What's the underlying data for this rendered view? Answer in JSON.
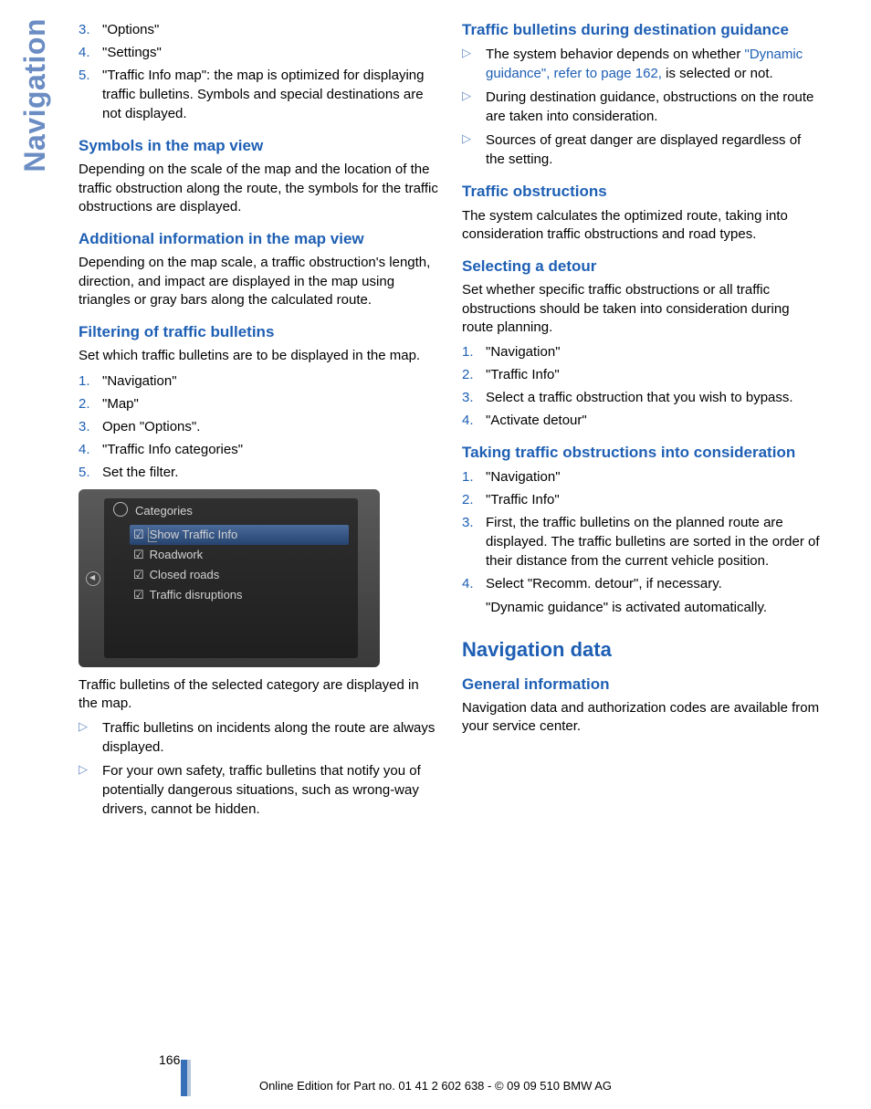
{
  "side_tab": "Navigation",
  "left": {
    "ol1": [
      "\"Options\"",
      "\"Settings\"",
      "\"Traffic Info map\": the map is optimized for displaying traffic bulletins. Symbols and special destinations are not displayed."
    ],
    "ol1_start": 3,
    "h_symbols": "Symbols in the map view",
    "p_symbols": "Depending on the scale of the map and the location of the traffic obstruction along the route, the symbols for the traffic obstructions are displayed.",
    "h_addinfo": "Additional information in the map view",
    "p_addinfo": "Depending on the map scale, a traffic obstruction's length, direction, and impact are displayed in the map using triangles or gray bars along the calculated route.",
    "h_filter": "Filtering of traffic bulletins",
    "p_filter": "Set which traffic bulletins are to be displayed in the map.",
    "ol2": [
      "\"Navigation\"",
      "\"Map\"",
      "Open \"Options\".",
      "\"Traffic Info categories\"",
      "Set the filter."
    ],
    "screenshot": {
      "title": "Categories",
      "items": [
        {
          "label": "Show Traffic Info",
          "selected": true
        },
        {
          "label": "Roadwork",
          "selected": false
        },
        {
          "label": "Closed roads",
          "selected": false
        },
        {
          "label": "Traffic disruptions",
          "selected": false
        }
      ]
    },
    "p_after_shot": "Traffic bulletins of the selected category are displayed in the map.",
    "tri1": [
      "Traffic bulletins on incidents along the route are always displayed.",
      "For your own safety, traffic bulletins that notify you of potentially dangerous situations, such as wrong-way drivers, cannot be hidden."
    ]
  },
  "right": {
    "h_tbdg": "Traffic bulletins during destination guidance",
    "tri2": [
      {
        "pre": "The system behavior depends on whether ",
        "link": "\"Dynamic guidance\", refer to page 162,",
        "post": " is selected or not."
      },
      {
        "pre": "During destination guidance, obstructions on the route are taken into consideration.",
        "link": "",
        "post": ""
      },
      {
        "pre": "Sources of great danger are displayed regardless of the setting.",
        "link": "",
        "post": ""
      }
    ],
    "h_to": "Traffic obstructions",
    "p_to": "The system calculates the optimized route, taking into consideration traffic obstructions and road types.",
    "h_sel": "Selecting a detour",
    "p_sel": "Set whether specific traffic obstructions or all traffic obstructions should be taken into consideration during route planning.",
    "ol3": [
      "\"Navigation\"",
      "\"Traffic Info\"",
      "Select a traffic obstruction that you wish to bypass.",
      "\"Activate detour\""
    ],
    "h_take": "Taking traffic obstructions into consideration",
    "ol4": [
      "\"Navigation\"",
      "\"Traffic Info\"",
      "First, the traffic bulletins on the planned route are displayed. The traffic bulletins are sorted in the order of their distance from the current vehicle position.",
      "Select \"Recomm. detour\", if necessary."
    ],
    "p_dyn": "\"Dynamic guidance\" is activated automatically.",
    "h_navdata": "Navigation data",
    "h_geninfo": "General information",
    "p_geninfo": "Navigation data and authorization codes are available from your service center."
  },
  "footer": {
    "page": "166",
    "line": "Online Edition for Part no. 01 41 2 602 638 - © 09 09 510 BMW AG"
  }
}
